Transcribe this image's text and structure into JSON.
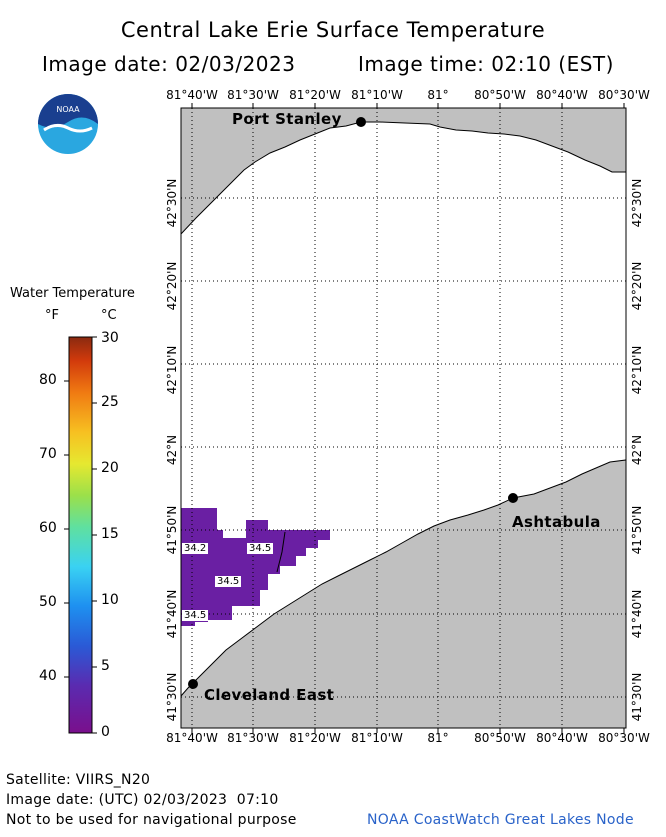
{
  "title": "Central Lake Erie Surface Temperature",
  "image_date_line": "Image date: 02/03/2023",
  "image_time_line": "Image time: 02:10 (EST)",
  "longitude_ticks": [
    "81°40'W",
    "81°30'W",
    "81°20'W",
    "81°10'W",
    "81°",
    "80°50'W",
    "80°40'W",
    "80°30'W"
  ],
  "latitude_ticks": [
    "41°30'N",
    "41°40'N",
    "41°50'N",
    "42°N",
    "42°10'N",
    "42°20'N",
    "42°30'N"
  ],
  "cities": [
    {
      "name": "Port Stanley"
    },
    {
      "name": "Ashtabula"
    },
    {
      "name": "Cleveland East"
    }
  ],
  "temperature_labels": [
    "34.2",
    "34.5",
    "34.5",
    "34.5"
  ],
  "legend": {
    "title": "Water Temperature",
    "unit_f": "°F",
    "unit_c": "°C",
    "fahrenheit_ticks": [
      "40",
      "50",
      "60",
      "70",
      "80"
    ],
    "celsius_ticks": [
      "0",
      "5",
      "10",
      "15",
      "20",
      "25",
      "30"
    ]
  },
  "footer": {
    "satellite": "Satellite: VIIRS_N20",
    "utc_date": "Image date: (UTC) 02/03/2023  07:10",
    "disclaimer": "Not to be used for navigational purpose",
    "credit": "NOAA CoastWatch Great Lakes Node"
  },
  "logo": {
    "text": "NOAA"
  },
  "colors": {
    "land": "#c0c0c0",
    "water": "#ffffff",
    "cold_water": "#6a1fa3",
    "accent_link": "#2a63c9"
  }
}
